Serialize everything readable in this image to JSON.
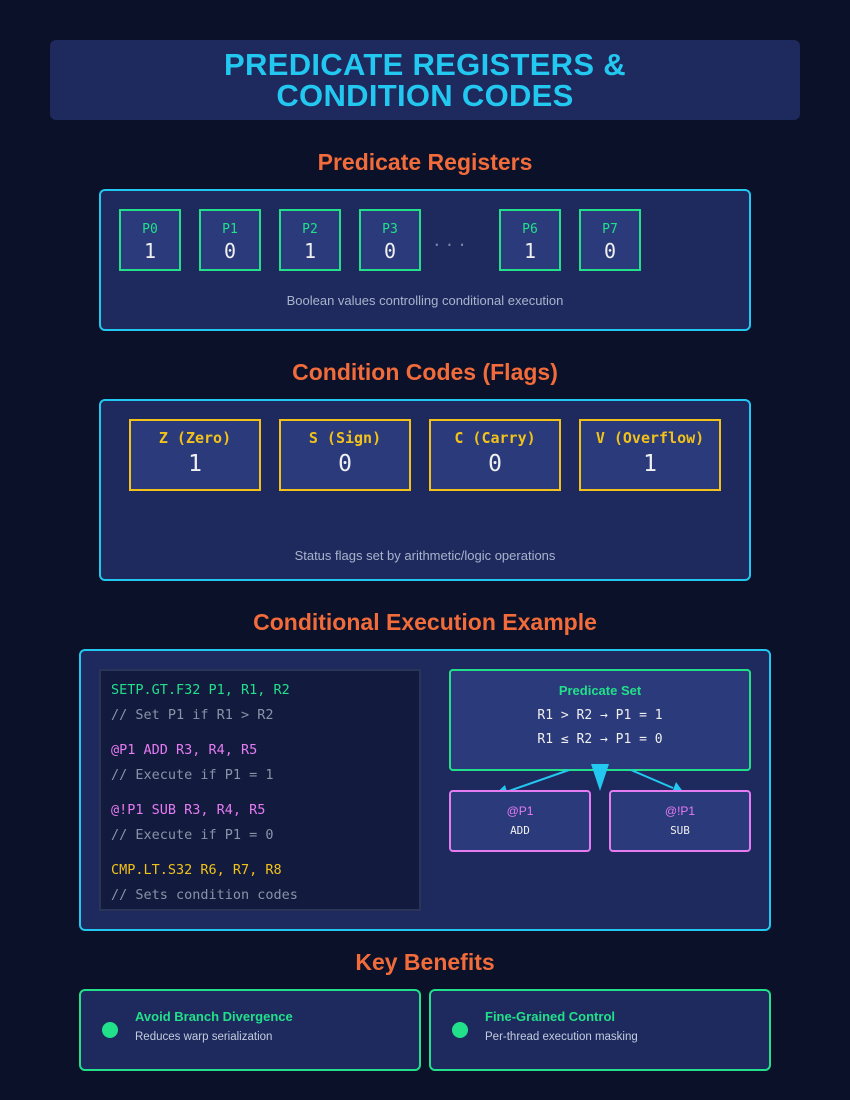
{
  "header": {
    "title_line1": "PREDICATE REGISTERS &",
    "title_line2": "CONDITION CODES"
  },
  "predicate_registers": {
    "title": "Predicate Registers",
    "registers": [
      {
        "name": "P0",
        "value": "1"
      },
      {
        "name": "P1",
        "value": "0"
      },
      {
        "name": "P2",
        "value": "1"
      },
      {
        "name": "P3",
        "value": "0"
      },
      {
        "name": "P6",
        "value": "1"
      },
      {
        "name": "P7",
        "value": "0"
      }
    ],
    "ellipsis": "...",
    "caption": "Boolean values controlling conditional execution"
  },
  "condition_codes": {
    "title": "Condition Codes (Flags)",
    "flags": [
      {
        "name": "Z (Zero)",
        "value": "1"
      },
      {
        "name": "S (Sign)",
        "value": "0"
      },
      {
        "name": "C (Carry)",
        "value": "0"
      },
      {
        "name": "V (Overflow)",
        "value": "1"
      }
    ],
    "caption": "Status flags set by arithmetic/logic operations"
  },
  "example": {
    "title": "Conditional Execution Example",
    "code": [
      {
        "text": "SETP.GT.F32 P1, R1, R2",
        "kind": "instr-set"
      },
      {
        "text": "// Set P1 if R1 > R2",
        "kind": "comment"
      },
      {
        "text": "@P1 ADD R3, R4, R5",
        "kind": "instr-pred"
      },
      {
        "text": "// Execute if P1 = 1",
        "kind": "comment"
      },
      {
        "text": "@!P1 SUB R3, R4, R5",
        "kind": "instr-pred"
      },
      {
        "text": "// Execute if P1 = 0",
        "kind": "comment"
      },
      {
        "text": "CMP.LT.S32 R6, R7, R8",
        "kind": "instr-cmp"
      },
      {
        "text": "// Sets condition codes",
        "kind": "comment"
      }
    ],
    "predicate_set": {
      "title": "Predicate Set",
      "line1": "R1 > R2 → P1 = 1",
      "line2": "R1 ≤ R2 → P1 = 0"
    },
    "branches": [
      {
        "label": "@P1",
        "op": "ADD"
      },
      {
        "label": "@!P1",
        "op": "SUB"
      }
    ]
  },
  "benefits": {
    "title": "Key Benefits",
    "items": [
      {
        "title": "Avoid Branch Divergence",
        "desc": "Reduces warp serialization"
      },
      {
        "title": "Fine-Grained Control",
        "desc": "Per-thread execution masking"
      }
    ]
  },
  "colors": {
    "background": "#0b1128",
    "panel": "#1e2a5e",
    "cyan": "#22c8f0",
    "orange": "#f26b3a",
    "green": "#22e08a",
    "yellow": "#f2c21b",
    "pink": "#e57cf2"
  }
}
